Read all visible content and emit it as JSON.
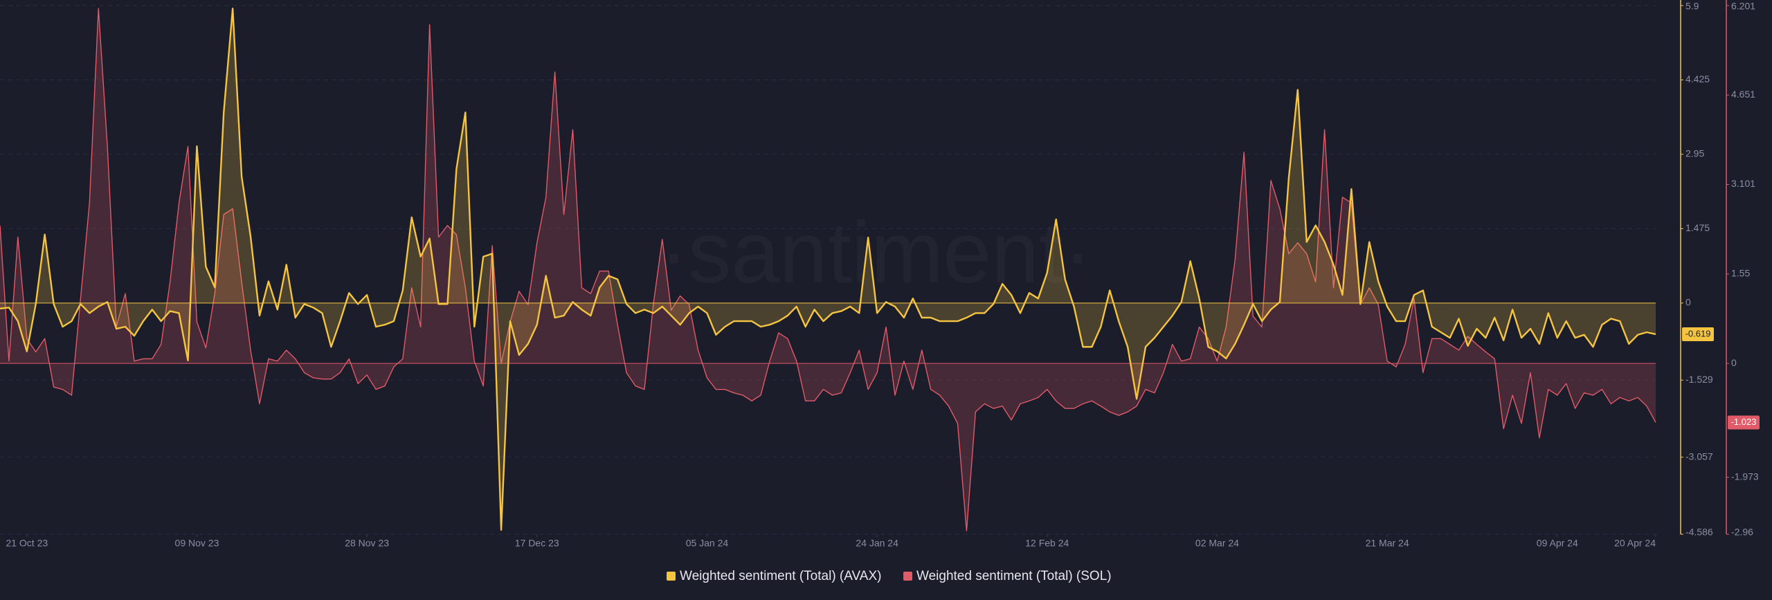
{
  "chart_data": {
    "type": "line",
    "watermark": "·santiment·",
    "grid": true,
    "x": [
      null,
      null,
      null,
      "21 Oct 23",
      null,
      null,
      null,
      null,
      null,
      null,
      null,
      null,
      null,
      null,
      null,
      null,
      null,
      null,
      null,
      null,
      null,
      null,
      "09 Nov 23",
      null,
      null,
      null,
      null,
      null,
      null,
      null,
      null,
      null,
      null,
      null,
      null,
      null,
      null,
      null,
      null,
      null,
      null,
      "28 Nov 23",
      null,
      null,
      null,
      null,
      null,
      null,
      null,
      null,
      null,
      null,
      null,
      null,
      null,
      null,
      null,
      null,
      null,
      null,
      "17 Dec 23",
      null,
      null,
      null,
      null,
      null,
      null,
      null,
      null,
      null,
      null,
      null,
      null,
      null,
      null,
      null,
      null,
      null,
      null,
      "05 Jan 24",
      null,
      null,
      null,
      null,
      null,
      null,
      null,
      null,
      null,
      null,
      null,
      null,
      null,
      null,
      null,
      null,
      null,
      null,
      "24 Jan 24",
      null,
      null,
      null,
      null,
      null,
      null,
      null,
      null,
      null,
      null,
      null,
      null,
      null,
      null,
      null,
      null,
      null,
      null,
      "12 Feb 24",
      null,
      null,
      null,
      null,
      null,
      null,
      null,
      null,
      null,
      null,
      null,
      null,
      null,
      null,
      null,
      null,
      null,
      null,
      "02 Mar 24",
      null,
      null,
      null,
      null,
      null,
      null,
      null,
      null,
      null,
      null,
      null,
      null,
      null,
      null,
      null,
      null,
      null,
      null,
      "21 Mar 24",
      null,
      null,
      null,
      null,
      null,
      null,
      null,
      null,
      null,
      null,
      null,
      null,
      null,
      null,
      null,
      null,
      null,
      null,
      "09 Apr 24",
      null,
      null,
      null,
      null,
      null,
      null,
      null,
      null,
      null,
      null,
      "20 Apr 24"
    ],
    "ylim": [
      -4.586,
      5.9
    ],
    "yticks": [
      5.9,
      4.425,
      2.95,
      1.475,
      0,
      -1.529,
      -3.057,
      -4.586
    ],
    "y2lim": [
      -2.96,
      6.201
    ],
    "y2ticks": [
      6.201,
      4.651,
      3.101,
      1.55,
      0,
      -1.973,
      -2.96
    ],
    "series": [
      {
        "name": "Weighted sentiment (Total) (AVAX)",
        "color": "#f5c542",
        "axis": "y",
        "values": [
          -0.11,
          -0.09,
          -0.36,
          -0.96,
          -0.02,
          1.36,
          -0.02,
          -0.47,
          -0.36,
          -0.02,
          -0.2,
          -0.07,
          0.02,
          -0.51,
          -0.47,
          -0.65,
          -0.36,
          -0.13,
          -0.36,
          -0.16,
          -0.2,
          -1.14,
          3.11,
          0.72,
          0.31,
          3.78,
          5.84,
          2.51,
          1.32,
          -0.25,
          0.43,
          -0.13,
          0.76,
          -0.29,
          -0.02,
          -0.09,
          -0.2,
          -0.87,
          -0.36,
          0.2,
          -0.02,
          0.16,
          -0.47,
          -0.43,
          -0.36,
          0.25,
          1.7,
          0.92,
          1.28,
          -0.02,
          -0.02,
          2.66,
          3.78,
          -0.47,
          0.92,
          0.98,
          -4.5,
          -0.36,
          -1.03,
          -0.81,
          -0.43,
          0.54,
          -0.29,
          -0.25,
          0.02,
          -0.13,
          -0.25,
          0.31,
          0.54,
          0.47,
          -0.02,
          -0.2,
          -0.13,
          -0.2,
          -0.07,
          -0.25,
          -0.43,
          -0.2,
          -0.07,
          -0.2,
          -0.63,
          -0.47,
          -0.36,
          -0.36,
          -0.36,
          -0.47,
          -0.43,
          -0.36,
          -0.25,
          -0.07,
          -0.47,
          -0.13,
          -0.36,
          -0.2,
          -0.16,
          -0.07,
          -0.2,
          1.3,
          -0.2,
          0.02,
          -0.07,
          -0.29,
          0.09,
          -0.29,
          -0.29,
          -0.36,
          -0.36,
          -0.36,
          -0.29,
          -0.2,
          -0.2,
          -0.02,
          0.38,
          0.16,
          -0.2,
          0.2,
          0.09,
          0.6,
          1.66,
          0.47,
          -0.07,
          -0.87,
          -0.87,
          -0.47,
          0.25,
          -0.36,
          -0.87,
          -1.9,
          -0.87,
          -0.69,
          -0.47,
          -0.25,
          0.02,
          0.83,
          0.09,
          -0.87,
          -0.96,
          -1.1,
          -0.81,
          -0.43,
          -0.02,
          -0.36,
          -0.13,
          0.02,
          2.48,
          4.23,
          1.21,
          1.54,
          1.21,
          0.76,
          0.16,
          2.26,
          -0.02,
          1.21,
          0.43,
          -0.07,
          -0.36,
          -0.36,
          0.16,
          0.25,
          -0.47,
          -0.58,
          -0.69,
          -0.31,
          -0.85,
          -0.51,
          -0.69,
          -0.29,
          -0.74,
          -0.13,
          -0.69,
          -0.51,
          -0.81,
          -0.2,
          -0.69,
          -0.36,
          -0.69,
          -0.63,
          -0.87,
          -0.43,
          -0.31,
          -0.36,
          -0.81,
          -0.63,
          -0.58,
          -0.619
        ]
      },
      {
        "name": "Weighted sentiment (Total) (SOL)",
        "color": "#e05a68",
        "axis": "y2",
        "values": [
          2.39,
          0.04,
          2.19,
          0.43,
          0.2,
          0.43,
          -0.41,
          -0.45,
          -0.55,
          1.12,
          2.78,
          6.15,
          3.76,
          0.63,
          1.21,
          0.04,
          0.08,
          0.08,
          0.33,
          1.41,
          2.78,
          3.76,
          0.72,
          0.27,
          1.21,
          2.58,
          2.68,
          1.41,
          0.23,
          -0.7,
          0.08,
          0.04,
          0.23,
          0.08,
          -0.16,
          -0.25,
          -0.27,
          -0.27,
          -0.16,
          0.08,
          -0.35,
          -0.2,
          -0.45,
          -0.39,
          -0.06,
          0.08,
          1.31,
          0.63,
          5.87,
          2.19,
          2.39,
          2.23,
          1.31,
          0.04,
          -0.39,
          2.04,
          0,
          0.72,
          1.25,
          1.02,
          2.09,
          2.88,
          5.05,
          2.58,
          4.05,
          1.31,
          1.21,
          1.6,
          1.6,
          0.67,
          -0.16,
          -0.39,
          -0.45,
          1.02,
          2.15,
          0.92,
          1.17,
          1.02,
          0.23,
          -0.25,
          -0.45,
          -0.45,
          -0.51,
          -0.55,
          -0.65,
          -0.55,
          0.04,
          0.53,
          0.43,
          0.04,
          -0.65,
          -0.65,
          -0.45,
          -0.55,
          -0.51,
          -0.16,
          0.23,
          -0.45,
          -0.16,
          0.63,
          -0.55,
          0.04,
          -0.45,
          0.23,
          -0.45,
          -0.55,
          -0.74,
          -1.04,
          -2.9,
          -0.84,
          -0.7,
          -0.78,
          -0.74,
          -0.98,
          -0.7,
          -0.65,
          -0.59,
          -0.45,
          -0.65,
          -0.78,
          -0.78,
          -0.7,
          -0.65,
          -0.74,
          -0.84,
          -0.9,
          -0.84,
          -0.74,
          -0.45,
          -0.51,
          -0.16,
          0.33,
          0.04,
          0.08,
          0.63,
          0.43,
          0.04,
          0.63,
          1.8,
          3.66,
          0.82,
          0.63,
          3.17,
          2.68,
          1.9,
          2.09,
          1.9,
          1.41,
          4.05,
          1.31,
          2.88,
          2.78,
          1.02,
          1.31,
          1.02,
          0.04,
          -0.06,
          0.33,
          1.12,
          -0.16,
          0.43,
          0.43,
          0.33,
          0.23,
          0.47,
          0.33,
          0.2,
          0.08,
          -1.13,
          -0.55,
          -1.04,
          -0.16,
          -1.29,
          -0.45,
          -0.55,
          -0.35,
          -0.78,
          -0.51,
          -0.55,
          -0.45,
          -0.7,
          -0.59,
          -0.65,
          -0.59,
          -0.74,
          -1.023
        ]
      }
    ]
  }
}
